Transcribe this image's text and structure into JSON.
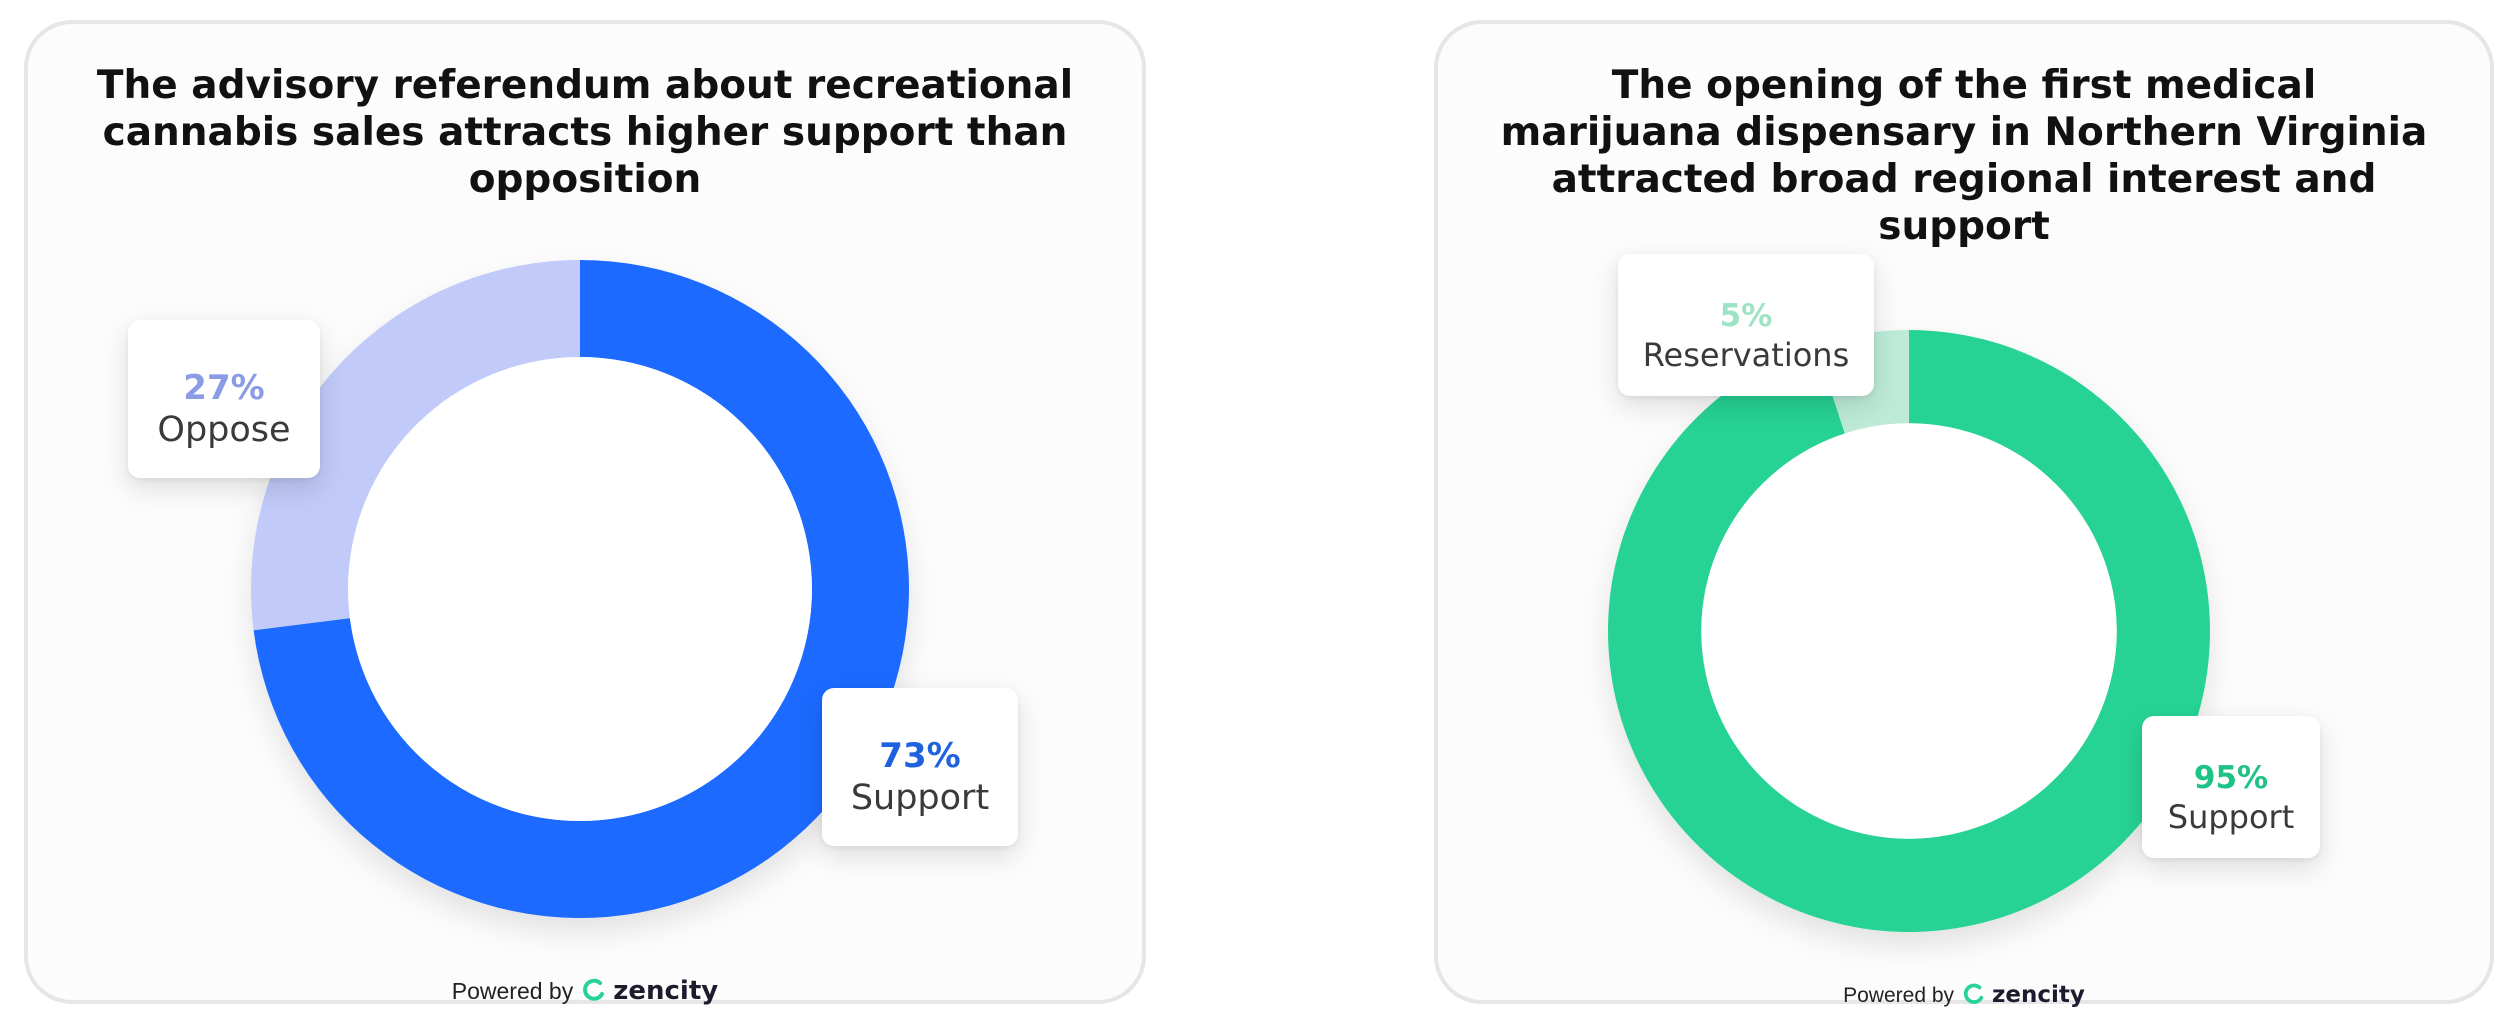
{
  "charts": [
    {
      "title": "The advisory referendum about recreational cannabis sales attracts higher support than opposition",
      "labels": {
        "oppose_pct": "27%",
        "oppose": "Oppose",
        "support_pct": "73%",
        "support": "Support"
      },
      "footer": {
        "powered_by": "Powered by",
        "brand": "zencity"
      }
    },
    {
      "title": "The opening of the first medical marijuana dispensary in Northern Virginia attracted broad regional interest and support",
      "labels": {
        "reservations_pct": "5%",
        "reservations": "Reservations",
        "support_pct": "95%",
        "support": "Support"
      },
      "footer": {
        "powered_by": "Powered by",
        "brand": "zencity"
      }
    }
  ],
  "chart_data": [
    {
      "type": "pie",
      "title": "The advisory referendum about recreational cannabis sales attracts higher support than opposition",
      "categories": [
        "Support",
        "Oppose"
      ],
      "values": [
        73,
        27
      ],
      "colors": [
        "#1e6bff",
        "#c1caf8"
      ],
      "label_colors": [
        "#1e62e0",
        "#8c9be6"
      ],
      "donut": true,
      "legend": "callouts"
    },
    {
      "type": "pie",
      "title": "The opening of the first medical marijuana dispensary in Northern Virginia attracted broad regional interest and support",
      "categories": [
        "Support",
        "Reservations"
      ],
      "values": [
        95,
        5
      ],
      "colors": [
        "#25d394",
        "#bdebd8"
      ],
      "label_colors": [
        "#1fc285",
        "#9ee3c6"
      ],
      "donut": true,
      "legend": "callouts"
    }
  ],
  "brand_colors": {
    "accent": "#25d394",
    "dark": "#1c1c2e"
  },
  "icons": {
    "brand_logo": "zencity-logo-icon"
  }
}
